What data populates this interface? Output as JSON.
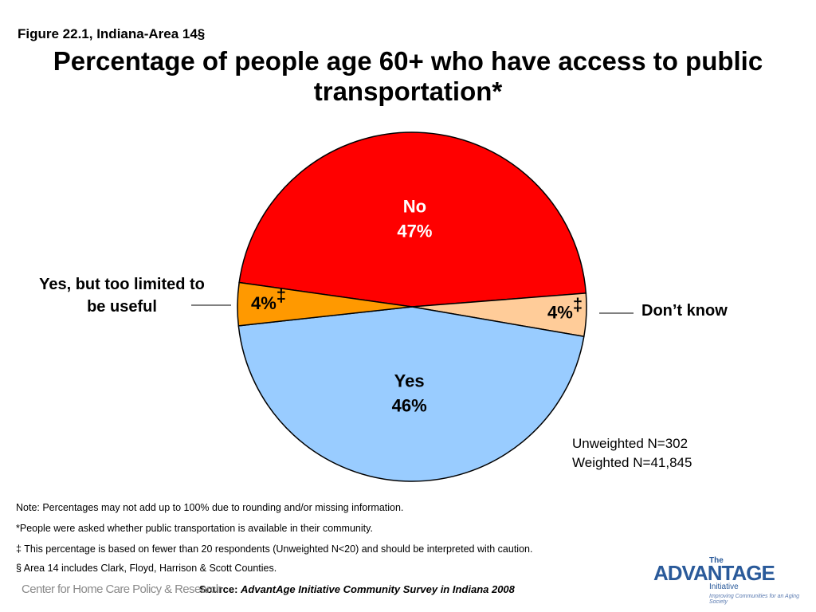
{
  "figure_label": "Figure 22.1, Indiana-Area 14§",
  "chart_data": {
    "type": "pie",
    "title": "Percentage of people age 60+ who have access to public transportation*",
    "categories": [
      "No",
      "Don’t know",
      "Yes",
      "Yes, but too limited to be useful"
    ],
    "values": [
      47,
      4,
      46,
      4
    ],
    "value_labels": [
      "47%",
      "4%",
      "46%",
      "4%"
    ],
    "label_marks": [
      null,
      "‡",
      null,
      "‡"
    ],
    "colors": [
      "#ff0000",
      "#ffcc99",
      "#99ccff",
      "#ff9900"
    ],
    "annotations": [
      "Unweighted N=302",
      "Weighted N=41,845"
    ]
  },
  "notes": [
    "Note: Percentages may not add up to 100% due to rounding and/or missing information.",
    "*People were asked whether public transportation is available in their community.",
    "‡ This percentage is based on fewer than 20 respondents (Unweighted N<20) and should be interpreted with caution.",
    "§ Area 14 includes Clark, Floyd, Harrison & Scott Counties."
  ],
  "source": {
    "label": "Source:",
    "text": "AdvantAge Initiative Community Survey in Indiana 2008"
  },
  "logos": {
    "left": "Center for Home Care Policy & Research",
    "right": {
      "the": "The",
      "name": "ADVANTAGE",
      "sub": "Initiative",
      "tagline": "Improving Communities for an Aging Society"
    }
  }
}
